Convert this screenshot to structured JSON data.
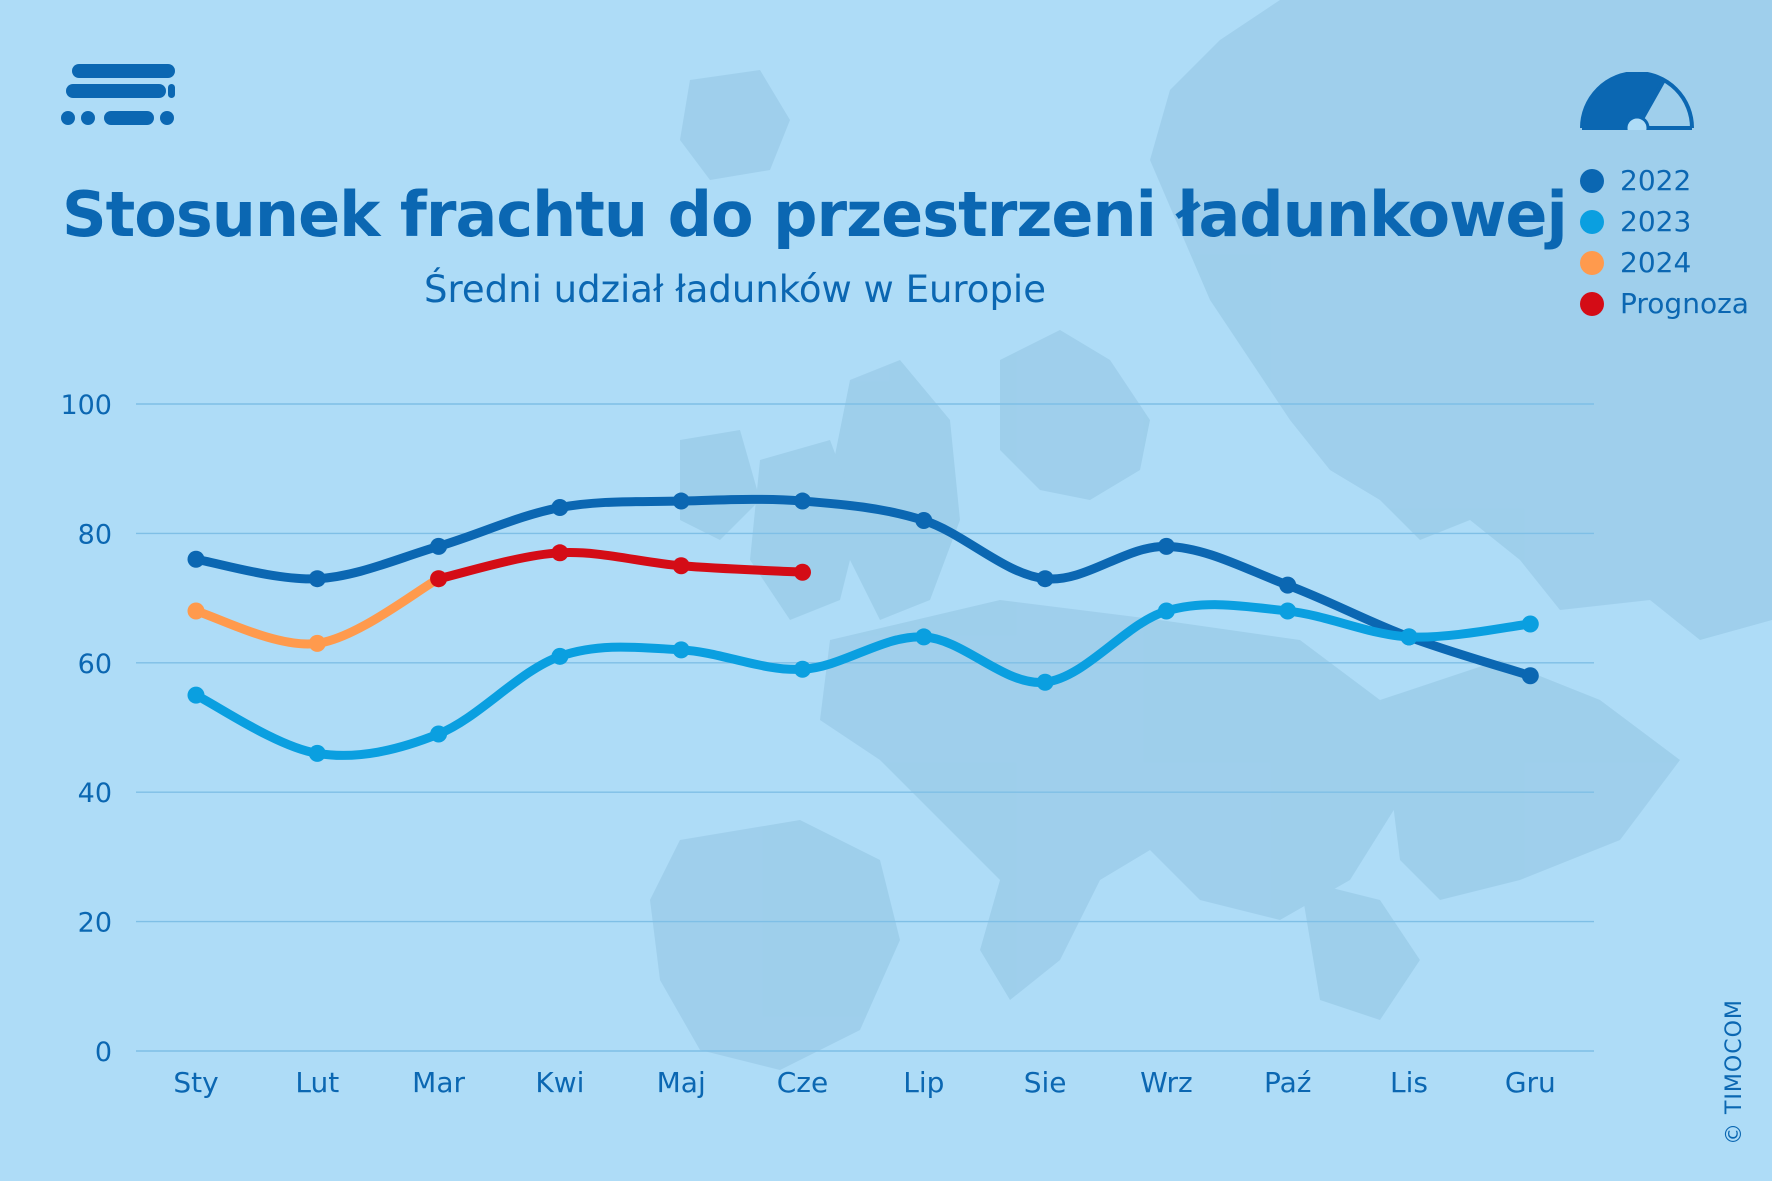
{
  "header": {
    "title": "Stosunek frachtu do przestrzeni ładunkowej",
    "subtitle": "Średni udział ładunków w Europie"
  },
  "copyright": "© TIMOCOM",
  "colors": {
    "background": "#aedcf7",
    "text": "#0b67b2",
    "grid": "#7fbfe6",
    "map": "#9ccdea"
  },
  "icons": {
    "brand": "timocom-logo-icon",
    "gauge": "gauge-icon"
  },
  "chart_data": {
    "type": "line",
    "title": "Stosunek frachtu do przestrzeni ładunkowej",
    "subtitle": "Średni udział ładunków w Europie",
    "xlabel": "",
    "ylabel": "",
    "ylim": [
      0,
      100
    ],
    "yticks": [
      "0",
      "20",
      "40",
      "60",
      "80",
      "100"
    ],
    "grid": true,
    "legend_position": "top-right",
    "categories": [
      "Sty",
      "Lut",
      "Mar",
      "Kwi",
      "Maj",
      "Cze",
      "Lip",
      "Sie",
      "Wrz",
      "Paź",
      "Lis",
      "Gru"
    ],
    "series": [
      {
        "name": "2022",
        "color": "#0b67b2",
        "values": [
          76,
          73,
          78,
          84,
          85,
          85,
          82,
          73,
          78,
          72,
          64,
          58
        ]
      },
      {
        "name": "2023",
        "color": "#0a9fe0",
        "values": [
          55,
          46,
          49,
          61,
          62,
          59,
          64,
          57,
          68,
          68,
          64,
          66
        ]
      },
      {
        "name": "2024",
        "color": "#ff9a4d",
        "values": [
          68,
          63,
          73,
          null,
          null,
          null,
          null,
          null,
          null,
          null,
          null,
          null
        ]
      },
      {
        "name": "Prognoza",
        "color": "#d40c16",
        "values": [
          null,
          null,
          73,
          77,
          75,
          74,
          null,
          null,
          null,
          null,
          null,
          null
        ]
      }
    ]
  }
}
